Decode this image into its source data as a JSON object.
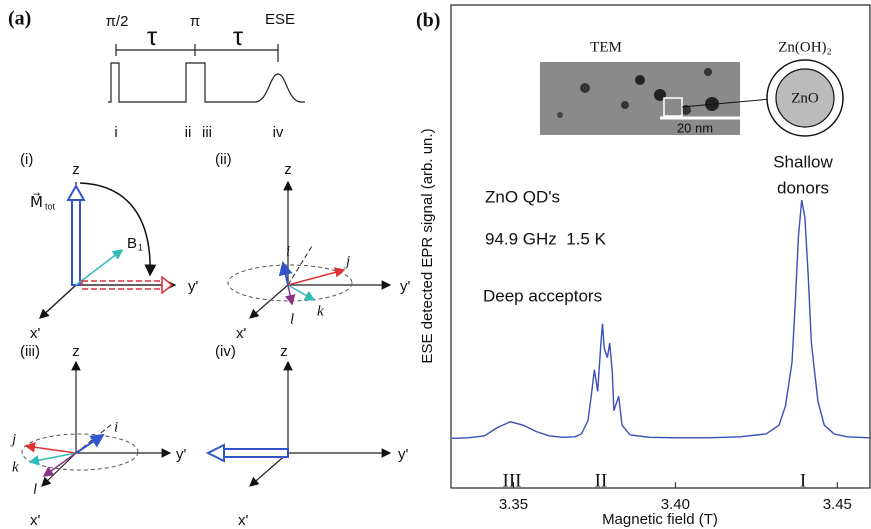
{
  "panel_a": {
    "label": "(a)",
    "pulse": {
      "p1": "π/2",
      "tau1": "τ",
      "p2": "π",
      "tau2": "τ",
      "echo": "ESE",
      "marks": [
        "i",
        "ii",
        "iii",
        "iv"
      ]
    },
    "frames": [
      {
        "title": "(i)",
        "z": "z",
        "y": "y'",
        "x": "x'",
        "m": "M⃗",
        "msub": "tot",
        "b": "B",
        "bsub": "1"
      },
      {
        "title": "(ii)",
        "z": "z",
        "y": "y'",
        "x": "x'",
        "vecs": [
          "i",
          "j",
          "k",
          "l"
        ]
      },
      {
        "title": "(iii)",
        "z": "z",
        "y": "y'",
        "x": "x'",
        "vecs": [
          "i",
          "j",
          "k",
          "l"
        ]
      },
      {
        "title": "(iv)",
        "z": "z",
        "y": "y'",
        "x": "x'"
      }
    ]
  },
  "panel_b": {
    "label": "(b)",
    "inset_title": "TEM",
    "scale": "20 nm",
    "shell": "Zn(OH)₂",
    "core": "ZnO"
  },
  "chart_data": {
    "type": "line",
    "x_label": "Magnetic field (T)",
    "y_label": "ESE detected EPR signal (arb. un.)",
    "x": [
      3.331,
      3.336,
      3.341,
      3.345,
      3.349,
      3.353,
      3.357,
      3.361,
      3.365,
      3.369,
      3.371,
      3.373,
      3.374,
      3.375,
      3.376,
      3.377,
      3.3775,
      3.378,
      3.379,
      3.3797,
      3.3805,
      3.381,
      3.3825,
      3.3835,
      3.386,
      3.392,
      3.4,
      3.41,
      3.42,
      3.428,
      3.432,
      3.434,
      3.436,
      3.437,
      3.438,
      3.439,
      3.44,
      3.441,
      3.442,
      3.444,
      3.446,
      3.449,
      3.453,
      3.46
    ],
    "values": [
      0.103,
      0.104,
      0.108,
      0.125,
      0.137,
      0.13,
      0.117,
      0.108,
      0.105,
      0.106,
      0.112,
      0.14,
      0.19,
      0.245,
      0.2,
      0.3,
      0.34,
      0.29,
      0.27,
      0.3,
      0.24,
      0.16,
      0.19,
      0.13,
      0.11,
      0.105,
      0.104,
      0.104,
      0.106,
      0.112,
      0.13,
      0.17,
      0.26,
      0.38,
      0.52,
      0.596,
      0.56,
      0.44,
      0.3,
      0.18,
      0.13,
      0.112,
      0.106,
      0.104
    ],
    "color": "#3b4fb8",
    "xlim": [
      3.3307,
      3.4601
    ],
    "ylim": [
      0,
      1
    ],
    "xticks": [
      {
        "value": 3.35,
        "label": "3.35"
      },
      {
        "value": 3.4,
        "label": "3.40"
      },
      {
        "value": 3.45,
        "label": "3.45"
      }
    ],
    "annotations": {
      "sample": "ZnO QD's",
      "conditions": "94.9 GHz  1.5 K",
      "deep": "Deep acceptors",
      "shallow": [
        "Shallow",
        "donors"
      ],
      "peaks": [
        "III",
        "II",
        "I"
      ]
    }
  }
}
